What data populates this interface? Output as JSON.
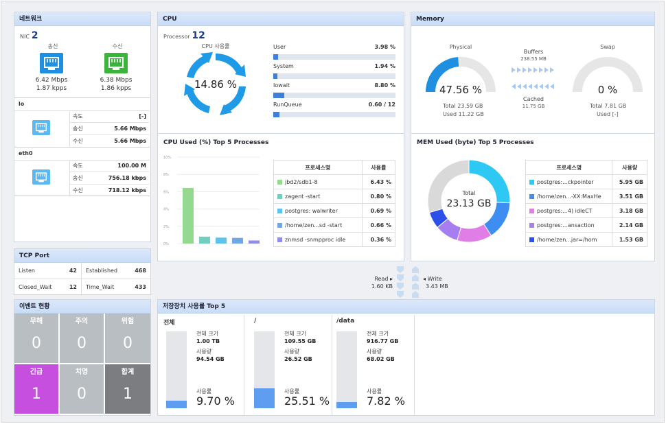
{
  "network": {
    "title": "네트워크",
    "nic_label": "NIC",
    "nic_count": "2",
    "send_label": "송신",
    "recv_label": "수신",
    "send_mbps": "6.42 Mbps",
    "send_kpps": "1.87 kpps",
    "recv_mbps": "6.38 Mbps",
    "recv_kpps": "1.86 kpps",
    "interfaces": [
      {
        "name": "lo",
        "rows": [
          {
            "k": "속도",
            "v": "[-]"
          },
          {
            "k": "송신",
            "v": "5.66 Mbps"
          },
          {
            "k": "수신",
            "v": "5.66 Mbps"
          }
        ]
      },
      {
        "name": "eth0",
        "rows": [
          {
            "k": "속도",
            "v": "100.00 M"
          },
          {
            "k": "송신",
            "v": "756.18 kbps"
          },
          {
            "k": "수신",
            "v": "718.12 kbps"
          }
        ]
      }
    ],
    "colors": {
      "send": "#1e8fe1",
      "recv": "#3cb43c",
      "if": "#5bb8f0"
    }
  },
  "tcp": {
    "title": "TCP Port",
    "cells": [
      {
        "k": "Listen",
        "v": "42"
      },
      {
        "k": "Established",
        "v": "468"
      },
      {
        "k": "Closed_Wait",
        "v": "12"
      },
      {
        "k": "Time_Wait",
        "v": "433"
      }
    ]
  },
  "events": {
    "title": "이벤트 현황",
    "items": [
      {
        "label": "무해",
        "value": "0",
        "color": "#b9bec3"
      },
      {
        "label": "주의",
        "value": "0",
        "color": "#b9bec3"
      },
      {
        "label": "위험",
        "value": "0",
        "color": "#b9bec3"
      },
      {
        "label": "긴급",
        "value": "1",
        "color": "#c64fe0"
      },
      {
        "label": "치명",
        "value": "0",
        "color": "#b9bec3"
      },
      {
        "label": "합계",
        "value": "1",
        "color": "#7b7d80"
      }
    ]
  },
  "cpu": {
    "title": "CPU",
    "processor_label": "Processor",
    "processor_count": "12",
    "usage_label": "CPU 사용률",
    "usage_value": "14.86 %",
    "stats": [
      {
        "name": "User",
        "value": "3.98 %",
        "fraction": 0.0398
      },
      {
        "name": "System",
        "value": "1.94 %",
        "fraction": 0.0194
      },
      {
        "name": "Iowait",
        "value": "8.80 %",
        "fraction": 0.088
      },
      {
        "name": "RunQueue",
        "value": "0.60 / 12",
        "fraction": 0.05
      }
    ]
  },
  "cpu_top": {
    "title": "CPU Used (%) Top 5 Processes",
    "col_name": "프로세스명",
    "col_value": "사용률",
    "rows": [
      {
        "name": "jbd2/sdb1-8",
        "value": "6.43 %",
        "color": "#95d88f"
      },
      {
        "name": "zagent -start",
        "value": "0.80 %",
        "color": "#6fd0c0"
      },
      {
        "name": "postgres: walwriter",
        "value": "0.69 %",
        "color": "#5fc3ee"
      },
      {
        "name": "/home/zen...sd -start",
        "value": "0.66 %",
        "color": "#6ea8e6"
      },
      {
        "name": "znmsd -snmpproc idle",
        "value": "0.36 %",
        "color": "#8f8fe6"
      }
    ],
    "chart_data": {
      "type": "bar",
      "categories": [
        "jbd2/sdb1-8",
        "zagent -start",
        "postgres: walwriter",
        "/home/zen...sd -start",
        "znmsd -snmpproc idle"
      ],
      "values": [
        6.43,
        0.8,
        0.69,
        0.66,
        0.36
      ],
      "ylim": [
        0,
        10
      ],
      "ticks": [
        "0%",
        "2%",
        "4%",
        "6%",
        "8%",
        "10%"
      ],
      "grid": true
    }
  },
  "memory": {
    "title": "Memory",
    "physical_label": "Physical",
    "physical_value": "47.56 %",
    "physical_fraction": 0.4756,
    "physical_total": "Total 23.59 GB",
    "physical_used": "Used 11.22 GB",
    "buffers_label": "Buffers",
    "buffers_value": "238.55 MB",
    "cached_label": "Cached",
    "cached_value": "11.75 GB",
    "swap_label": "Swap",
    "swap_value": "0 %",
    "swap_fraction": 0,
    "swap_total": "Total 7.81 GB",
    "swap_used": "Used [-]",
    "colors": {
      "gauge": "#1e8fe1",
      "track": "#e6e6e6"
    }
  },
  "mem_top": {
    "title": "MEM Used (byte) Top 5 Processes",
    "total_label": "Total",
    "total_value": "23.13 GB",
    "col_name": "프로세스명",
    "col_value": "사용량",
    "rows": [
      {
        "name": "postgres:...ckpointer",
        "value": "5.95 GB",
        "color": "#2ec8f5"
      },
      {
        "name": "/home/zen...-XX:MaxHe",
        "value": "3.51 GB",
        "color": "#3d8ef0"
      },
      {
        "name": "postgres:...4) idleCT",
        "value": "3.18 GB",
        "color": "#e07de6"
      },
      {
        "name": "postgres:...ansaction",
        "value": "2.14 GB",
        "color": "#a77ef0"
      },
      {
        "name": "/home/zen...jar=/hom",
        "value": "1.53 GB",
        "color": "#2b4fe8"
      }
    ],
    "chart_data": {
      "type": "pie",
      "labels": [
        "postgres:...ckpointer",
        "/home/zen...-XX:MaxHe",
        "postgres:...4) idleCT",
        "postgres:...ansaction",
        "/home/zen...jar=/hom"
      ],
      "values": [
        5.95,
        3.51,
        3.18,
        2.14,
        1.53
      ],
      "total": 23.13,
      "other_color": "#d9d9d9"
    }
  },
  "io": {
    "read_label": "Read",
    "read_value": "1.60 KB",
    "write_label": "Write",
    "write_value": "3.43 MB"
  },
  "storage": {
    "title": "저장장치 사용률 Top 5",
    "total_size_label": "전체 크기",
    "used_label": "사용량",
    "usage_label": "사용률",
    "items": [
      {
        "name": "전체",
        "total": "1.00 TB",
        "used": "94.54 GB",
        "percent": "9.70 %",
        "fraction": 0.097
      },
      {
        "name": "/",
        "total": "109.55 GB",
        "used": "26.52 GB",
        "percent": "25.51 %",
        "fraction": 0.2551
      },
      {
        "name": "/data",
        "total": "916.77 GB",
        "used": "68.02 GB",
        "percent": "7.82 %",
        "fraction": 0.0782
      }
    ]
  }
}
